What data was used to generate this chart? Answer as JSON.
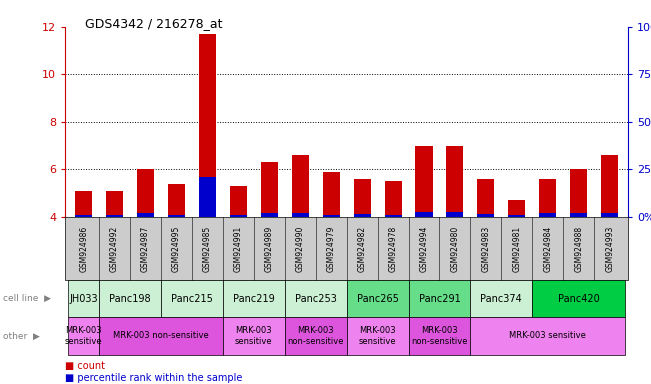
{
  "title": "GDS4342 / 216278_at",
  "gsm_labels": [
    "GSM924986",
    "GSM924992",
    "GSM924987",
    "GSM924995",
    "GSM924985",
    "GSM924991",
    "GSM924989",
    "GSM924990",
    "GSM924979",
    "GSM924982",
    "GSM924978",
    "GSM924994",
    "GSM924980",
    "GSM924983",
    "GSM924981",
    "GSM924984",
    "GSM924988",
    "GSM924993"
  ],
  "red_values": [
    5.1,
    5.1,
    6.0,
    5.4,
    11.7,
    5.3,
    6.3,
    6.6,
    5.9,
    5.6,
    5.5,
    7.0,
    7.0,
    5.6,
    4.7,
    5.6,
    6.0,
    6.6
  ],
  "blue_values": [
    4.07,
    4.07,
    4.15,
    4.07,
    5.7,
    4.07,
    4.15,
    4.15,
    4.07,
    4.12,
    4.07,
    4.2,
    4.2,
    4.12,
    4.07,
    4.15,
    4.15,
    4.15
  ],
  "ylim": [
    4,
    12
  ],
  "yticks_left": [
    4,
    6,
    8,
    10,
    12
  ],
  "cell_line_groups": [
    {
      "label": "JH033",
      "start": 0,
      "end": 1,
      "color": "#ccf0d4"
    },
    {
      "label": "Panc198",
      "start": 1,
      "end": 3,
      "color": "#ccf0d4"
    },
    {
      "label": "Panc215",
      "start": 3,
      "end": 5,
      "color": "#ccf0d4"
    },
    {
      "label": "Panc219",
      "start": 5,
      "end": 7,
      "color": "#ccf0d4"
    },
    {
      "label": "Panc253",
      "start": 7,
      "end": 9,
      "color": "#ccf0d4"
    },
    {
      "label": "Panc265",
      "start": 9,
      "end": 11,
      "color": "#66dd88"
    },
    {
      "label": "Panc291",
      "start": 11,
      "end": 13,
      "color": "#66dd88"
    },
    {
      "label": "Panc374",
      "start": 13,
      "end": 15,
      "color": "#ccf0d4"
    },
    {
      "label": "Panc420",
      "start": 15,
      "end": 18,
      "color": "#00cc44"
    }
  ],
  "other_groups": [
    {
      "label": "MRK-003\nsensitive",
      "start": 0,
      "end": 1,
      "color": "#ee82ee"
    },
    {
      "label": "MRK-003 non-sensitive",
      "start": 1,
      "end": 5,
      "color": "#dd55dd"
    },
    {
      "label": "MRK-003\nsensitive",
      "start": 5,
      "end": 7,
      "color": "#ee82ee"
    },
    {
      "label": "MRK-003\nnon-sensitive",
      "start": 7,
      "end": 9,
      "color": "#dd55dd"
    },
    {
      "label": "MRK-003\nsensitive",
      "start": 9,
      "end": 11,
      "color": "#ee82ee"
    },
    {
      "label": "MRK-003\nnon-sensitive",
      "start": 11,
      "end": 13,
      "color": "#dd55dd"
    },
    {
      "label": "MRK-003 sensitive",
      "start": 13,
      "end": 18,
      "color": "#ee82ee"
    }
  ],
  "bar_color_red": "#cc0000",
  "bar_color_blue": "#0000cc",
  "bar_width": 0.55,
  "bg_color": "#ffffff",
  "left_axis_color": "#cc0000",
  "right_axis_color": "#0000cc",
  "legend_count": "count",
  "legend_pct": "percentile rank within the sample",
  "gsm_row_color": "#cccccc"
}
